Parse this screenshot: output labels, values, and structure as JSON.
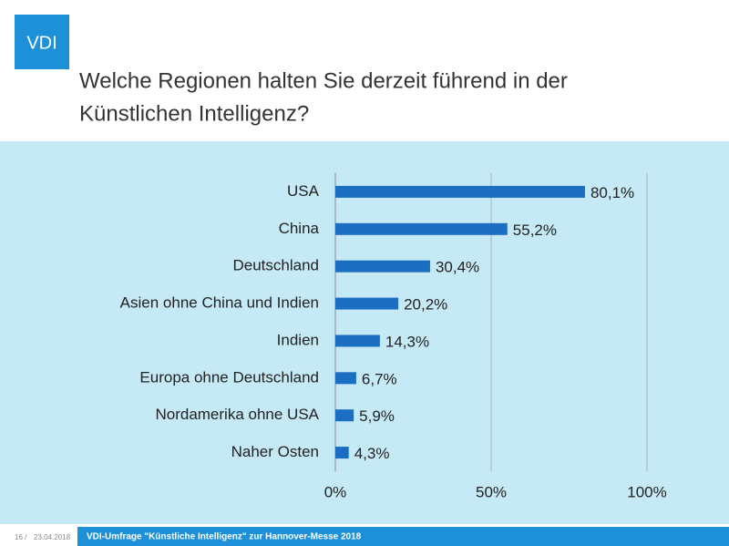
{
  "logo": "VDI",
  "footer": {
    "page": "16 /",
    "date": "23.04.2018",
    "caption": "VDI-Umfrage \"Künstliche Intelligenz\" zur Hannover-Messe 2018"
  },
  "chart_data": {
    "type": "bar",
    "orientation": "horizontal",
    "title": [
      "Welche Regionen halten Sie derzeit führend in der",
      "Künstlichen Intelligenz?"
    ],
    "categories": [
      "USA",
      "China",
      "Deutschland",
      "Asien ohne China und Indien",
      "Indien",
      "Europa ohne Deutschland",
      "Nordamerika ohne USA",
      "Naher Osten"
    ],
    "values": [
      80.1,
      55.2,
      30.4,
      20.2,
      14.3,
      6.7,
      5.9,
      4.3
    ],
    "value_labels": [
      "80,1%",
      "55,2%",
      "30,4%",
      "20,2%",
      "14,3%",
      "6,7%",
      "5,9%",
      "4,3%"
    ],
    "color": "#1b6ec2",
    "xlim": [
      0,
      100
    ],
    "xticks": [
      {
        "value": 0,
        "label": "0%"
      },
      {
        "value": 50,
        "label": "50%"
      },
      {
        "value": 100,
        "label": "100%"
      }
    ],
    "grid": true
  }
}
